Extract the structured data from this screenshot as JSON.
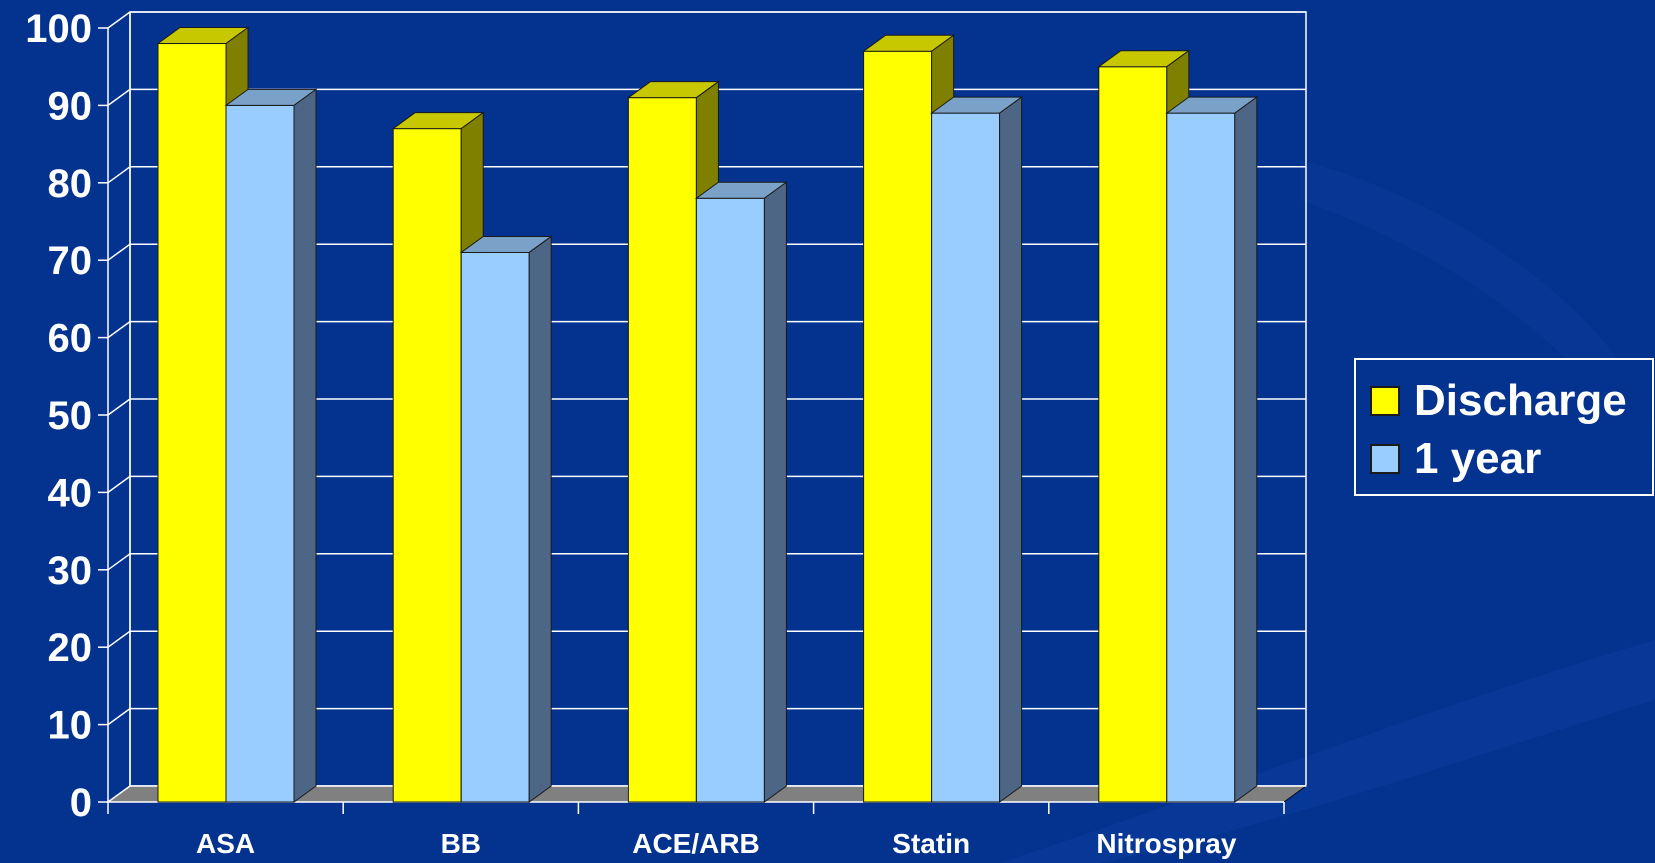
{
  "chart_data": {
    "type": "bar",
    "style": "3d-clustered",
    "categories": [
      "ASA",
      "BB",
      "ACE/ARB",
      "Statin",
      "Nitrospray"
    ],
    "series": [
      {
        "name": "Discharge",
        "values": [
          98,
          87,
          91,
          97,
          95
        ],
        "color": "#ffff00"
      },
      {
        "name": "1 year",
        "values": [
          90,
          71,
          78,
          89,
          89
        ],
        "color": "#99ccff"
      }
    ],
    "ylim": [
      0,
      100
    ],
    "yticks": [
      "0",
      "10",
      "20",
      "30",
      "40",
      "50",
      "60",
      "70",
      "80",
      "90",
      "100"
    ],
    "grid": true,
    "legend_position": "right",
    "title": "",
    "xlabel": "",
    "ylabel": ""
  },
  "colors": {
    "background": "#04328f",
    "discharge_side": "#808000",
    "one_year_side": "#4d6686",
    "floor": "#808080",
    "gridline": "#ffffff"
  }
}
